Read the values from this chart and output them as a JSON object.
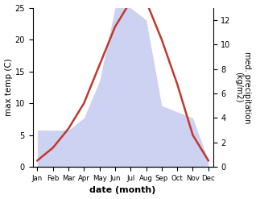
{
  "months": [
    "Jan",
    "Feb",
    "Mar",
    "Apr",
    "May",
    "Jun",
    "Jul",
    "Aug",
    "Sep",
    "Oct",
    "Nov",
    "Dec"
  ],
  "x": [
    0,
    1,
    2,
    3,
    4,
    5,
    6,
    7,
    8,
    9,
    10,
    11
  ],
  "temperature": [
    1,
    3,
    6,
    10,
    16,
    22,
    26,
    26,
    20,
    13,
    5,
    1
  ],
  "precipitation_kg": [
    3,
    3,
    3,
    4,
    7,
    13,
    13,
    12,
    5,
    4.5,
    4,
    0.5
  ],
  "temp_ylim": [
    0,
    25
  ],
  "precip_kg_max": 13,
  "temp_scale_max": 25,
  "temp_color": "#c0392b",
  "precip_fill_color": "#c5caf0",
  "xlabel": "date (month)",
  "ylabel_left": "max temp (C)",
  "ylabel_right": "med. precipitation\n(kg/m2)",
  "right_yticks": [
    0,
    2,
    4,
    6,
    8,
    10,
    12
  ],
  "left_yticks": [
    0,
    5,
    10,
    15,
    20,
    25
  ],
  "background_color": "#ffffff"
}
